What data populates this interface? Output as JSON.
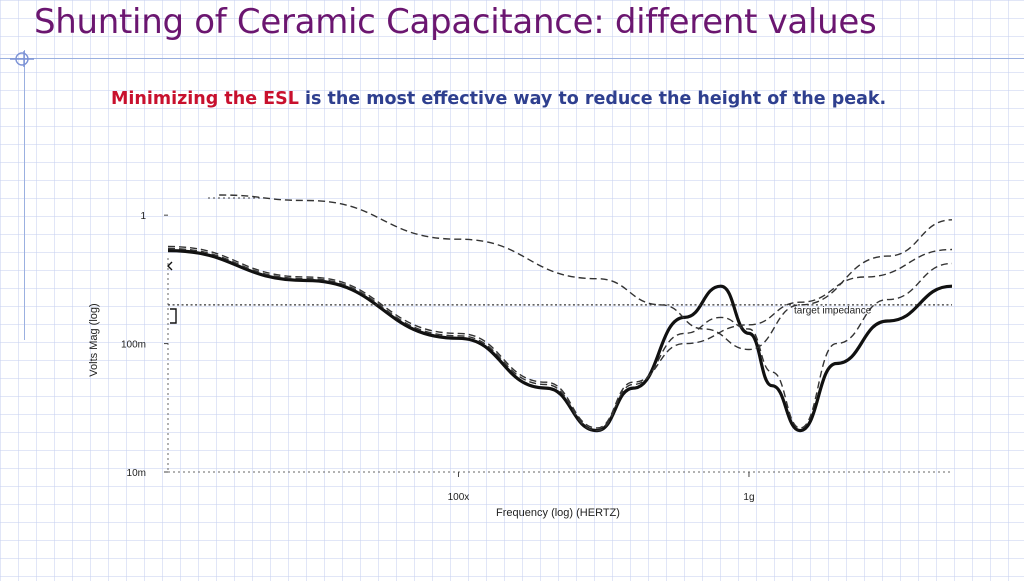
{
  "slide": {
    "title": "Shunting of Ceramic Capacitance: different values",
    "subtitle_highlight": "Minimizing the ESL",
    "subtitle_rest": " is the most effective way to reduce the height of the peak."
  },
  "colors": {
    "title": "#6b1670",
    "highlight": "#c8102e",
    "subtitle": "#2e3f8f"
  },
  "chart_data": {
    "type": "line",
    "xlabel": "Frequency (log) (HERTZ)",
    "ylabel": "Volts Mag (log)",
    "x_scale": "log",
    "y_scale": "log",
    "xlim": [
      10000000,
      5000000000
    ],
    "ylim": [
      0.01,
      1.2
    ],
    "x_ticks": [
      {
        "value": 100000000,
        "label": "100x"
      },
      {
        "value": 1000000000,
        "label": "1g"
      }
    ],
    "y_ticks": [
      {
        "value": 1,
        "label": "1"
      },
      {
        "value": 0.1,
        "label": "100m"
      },
      {
        "value": 0.01,
        "label": "10m"
      }
    ],
    "annotations": [
      {
        "text": "target impedance",
        "x": 2300000000,
        "y": 0.22
      }
    ],
    "series": [
      {
        "style": "thick",
        "points": [
          [
            10000000,
            0.53
          ],
          [
            30000000,
            0.31
          ],
          [
            100000000,
            0.11
          ],
          [
            200000000,
            0.045
          ],
          [
            300000000,
            0.021
          ],
          [
            400000000,
            0.045
          ],
          [
            600000000,
            0.16
          ],
          [
            800000000,
            0.28
          ],
          [
            1000000000,
            0.12
          ],
          [
            1200000000,
            0.047
          ],
          [
            1500000000,
            0.021
          ],
          [
            2000000000,
            0.07
          ],
          [
            3000000000,
            0.15
          ],
          [
            5000000000,
            0.28
          ]
        ]
      },
      {
        "style": "dashed",
        "points": [
          [
            10000000,
            0.57
          ],
          [
            30000000,
            0.33
          ],
          [
            100000000,
            0.12
          ],
          [
            200000000,
            0.05
          ],
          [
            300000000,
            0.022
          ],
          [
            400000000,
            0.05
          ],
          [
            600000000,
            0.1
          ],
          [
            1000000000,
            0.14
          ],
          [
            1500000000,
            0.21
          ],
          [
            2500000000,
            0.33
          ],
          [
            5000000000,
            0.54
          ]
        ]
      },
      {
        "style": "dashed",
        "points": [
          [
            10000000,
            0.55
          ],
          [
            30000000,
            0.32
          ],
          [
            100000000,
            0.115
          ],
          [
            200000000,
            0.048
          ],
          [
            300000000,
            0.021
          ],
          [
            400000000,
            0.048
          ],
          [
            600000000,
            0.12
          ],
          [
            800000000,
            0.16
          ],
          [
            1000000000,
            0.13
          ],
          [
            1200000000,
            0.06
          ],
          [
            1500000000,
            0.022
          ],
          [
            2000000000,
            0.1
          ],
          [
            3000000000,
            0.22
          ],
          [
            5000000000,
            0.42
          ]
        ]
      },
      {
        "style": "dashed",
        "points": [
          [
            15000000,
            1.6
          ],
          [
            30000000,
            1.3
          ],
          [
            100000000,
            0.65
          ],
          [
            300000000,
            0.32
          ],
          [
            500000000,
            0.2
          ],
          [
            700000000,
            0.13
          ],
          [
            1000000000,
            0.09
          ],
          [
            1500000000,
            0.2
          ],
          [
            3000000000,
            0.48
          ],
          [
            5000000000,
            0.92
          ]
        ]
      },
      {
        "style": "dotted",
        "points": [
          [
            10000000,
            0.2
          ],
          [
            5000000000,
            0.2
          ]
        ]
      }
    ]
  }
}
